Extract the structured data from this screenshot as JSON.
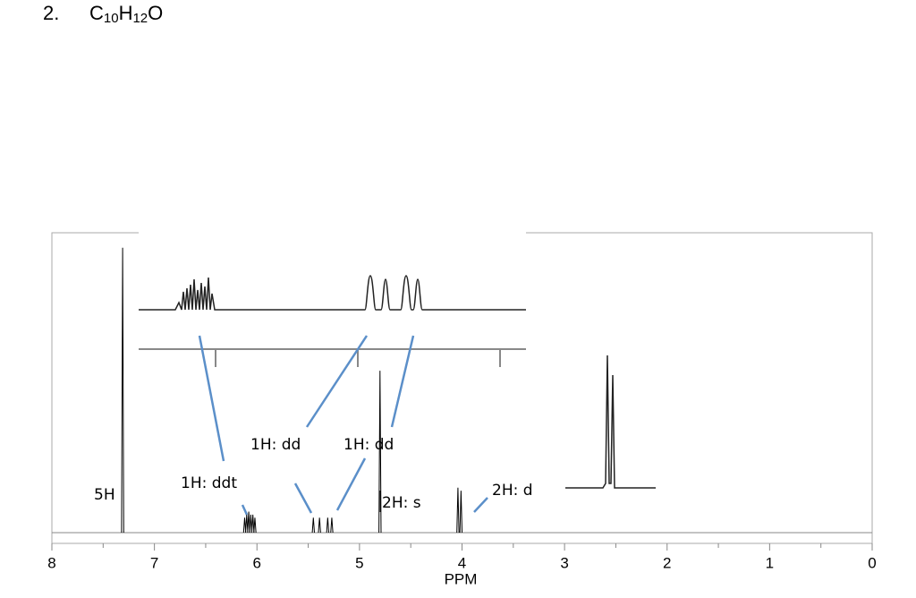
{
  "chart_data": {
    "type": "spectrum",
    "problem_number": "2.",
    "formula": [
      {
        "text": "C",
        "sub": false
      },
      {
        "text": "10",
        "sub": true
      },
      {
        "text": "H",
        "sub": false
      },
      {
        "text": "12",
        "sub": true
      },
      {
        "text": "O",
        "sub": false
      }
    ],
    "xlabel": "PPM",
    "xlim": [
      8,
      0
    ],
    "xticks": [
      8,
      7,
      6,
      5,
      4,
      3,
      2,
      1,
      0
    ],
    "xminorticks": [
      7.5,
      6.5,
      5.5,
      4.5,
      3.5,
      2.5,
      1.5,
      0.5
    ],
    "ylim": [
      0,
      100
    ],
    "color": "#000000",
    "peaks": {
      "x": [
        7.31,
        6.12,
        6.1,
        6.08,
        6.06,
        6.04,
        6.02,
        5.45,
        5.39,
        5.31,
        5.27,
        4.8,
        4.04,
        4.01
      ],
      "values": [
        95,
        5,
        6,
        7,
        6,
        6,
        5,
        5,
        5,
        5,
        5,
        54,
        15,
        14
      ]
    },
    "annotations": [
      "5H",
      "1H: ddt",
      "1H: dd",
      "1H: dd",
      "2H: s",
      "2H: d"
    ]
  }
}
